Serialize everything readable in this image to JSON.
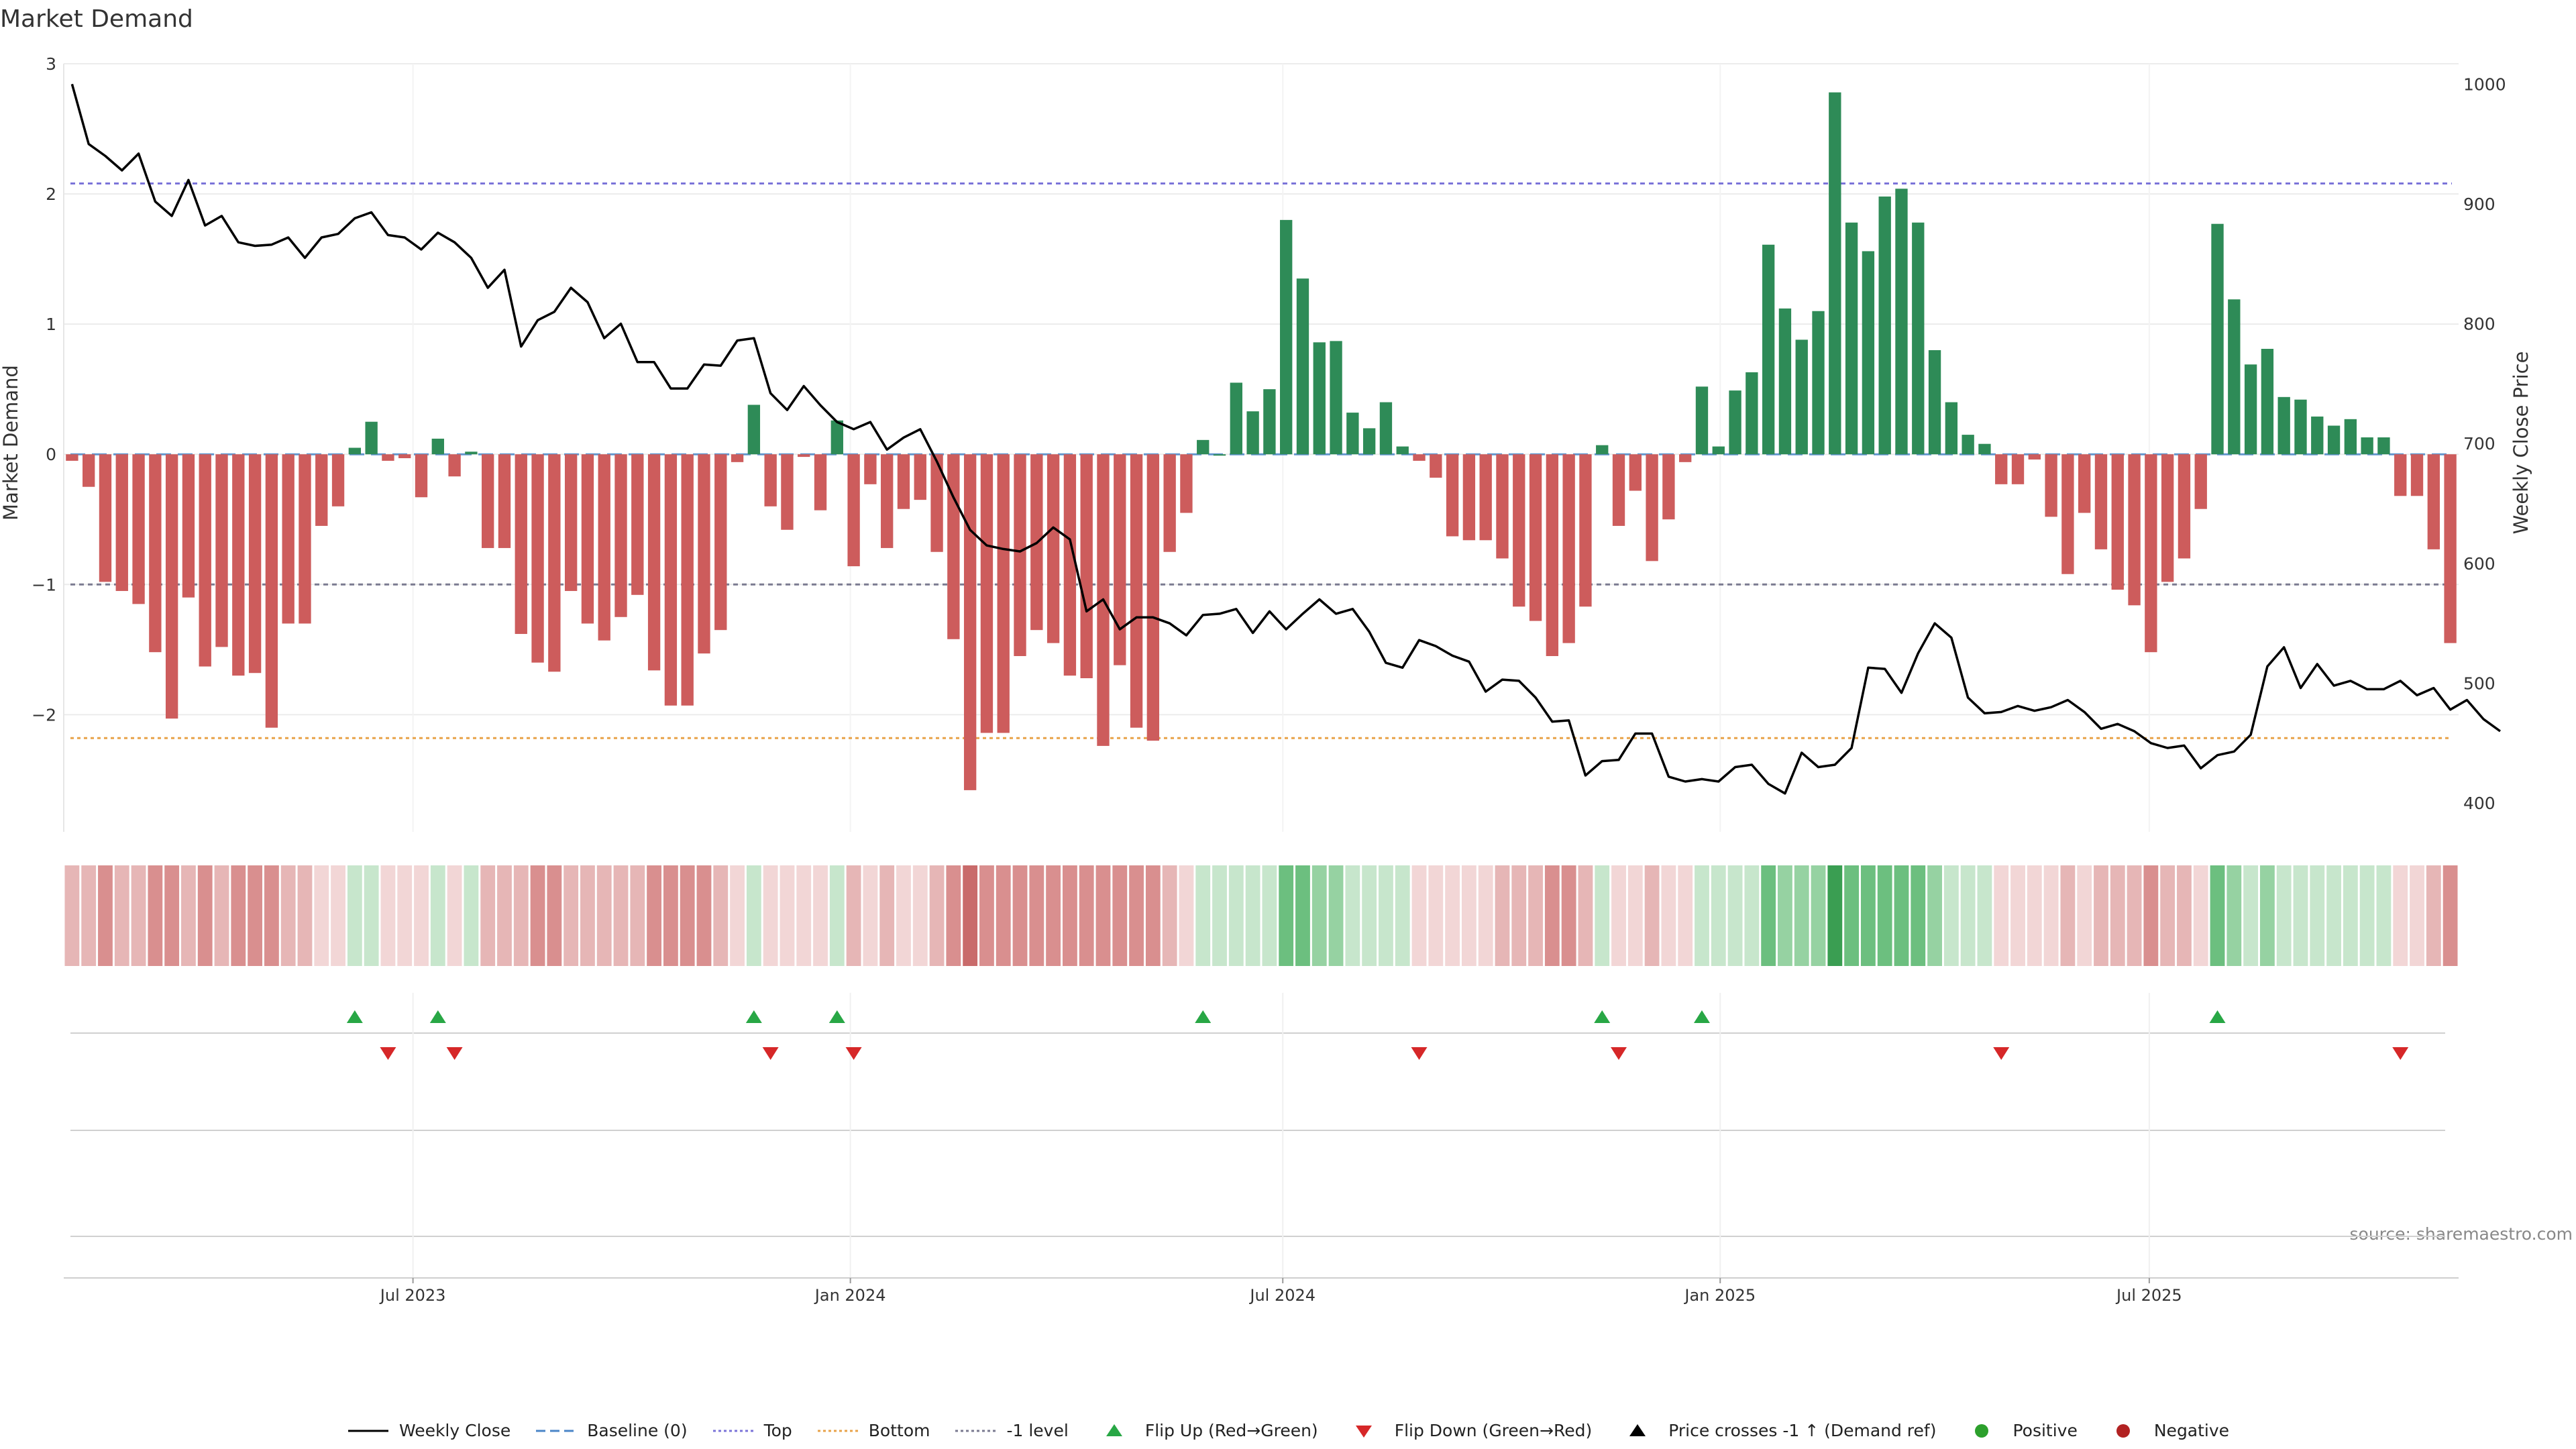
{
  "chart_data": {
    "type": "bar",
    "title": "Market Demand",
    "ylabel": "Market Demand",
    "y2label": "Weekly Close Price",
    "ylim": [
      -2.9,
      3.0
    ],
    "y2lim": [
      376,
      1017
    ],
    "yticks": [
      3,
      2,
      1,
      0,
      -1,
      -2
    ],
    "ytick_labels": [
      "3",
      "2",
      "1",
      "0",
      "−1",
      "−2"
    ],
    "y2ticks": [
      1000,
      900,
      800,
      700,
      600,
      500,
      400
    ],
    "y2tick_labels": [
      "1000",
      "900",
      "800",
      "700",
      "600",
      "500",
      "400"
    ],
    "reference_lines": [
      {
        "name": "top",
        "value": 2.08,
        "color": "#7b74d9"
      },
      {
        "name": "bottom",
        "value": -2.18,
        "color": "#e8a34a"
      },
      {
        "name": "minus-one",
        "value": -1.0,
        "color": "#7a7a90"
      },
      {
        "name": "baseline",
        "value": 0.0,
        "color": "#4a86c8"
      }
    ],
    "date_ticks": [
      {
        "label": "Jul 2023",
        "week": 21
      },
      {
        "label": "Jan 2024",
        "week": 47.3
      },
      {
        "label": "Jul 2024",
        "week": 73.3
      },
      {
        "label": "Jan 2025",
        "week": 99.6
      },
      {
        "label": "Jul 2025",
        "week": 125.4
      }
    ],
    "demand": [
      -0.05,
      -0.25,
      -0.98,
      -1.05,
      -1.15,
      -1.52,
      -2.03,
      -1.1,
      -1.63,
      -1.48,
      -1.7,
      -1.68,
      -2.1,
      -1.3,
      -1.3,
      -0.55,
      -0.4,
      0.05,
      0.25,
      -0.05,
      -0.03,
      -0.33,
      0.12,
      -0.17,
      0.02,
      -0.72,
      -0.72,
      -1.38,
      -1.6,
      -1.67,
      -1.05,
      -1.3,
      -1.43,
      -1.25,
      -1.08,
      -1.66,
      -1.93,
      -1.93,
      -1.53,
      -1.35,
      -0.06,
      0.38,
      -0.4,
      -0.58,
      -0.02,
      -0.43,
      0.26,
      -0.86,
      -0.23,
      -0.72,
      -0.42,
      -0.35,
      -0.75,
      -1.42,
      -2.58,
      -2.14,
      -2.14,
      -1.55,
      -1.35,
      -1.45,
      -1.7,
      -1.72,
      -2.24,
      -1.62,
      -2.1,
      -2.2,
      -0.75,
      -0.45,
      0.11,
      0.0,
      0.55,
      0.33,
      0.5,
      1.8,
      1.35,
      0.86,
      0.87,
      0.32,
      0.2,
      0.4,
      0.06,
      -0.05,
      -0.18,
      -0.63,
      -0.66,
      -0.66,
      -0.8,
      -1.17,
      -1.28,
      -1.55,
      -1.45,
      -1.17,
      0.07,
      -0.55,
      -0.28,
      -0.82,
      -0.5,
      -0.06,
      0.52,
      0.06,
      0.49,
      0.63,
      1.61,
      1.12,
      0.88,
      1.1,
      2.78,
      1.78,
      1.56,
      1.98,
      2.04,
      1.78,
      0.8,
      0.4,
      0.15,
      0.08,
      -0.23,
      -0.23,
      -0.04,
      -0.48,
      -0.92,
      -0.45,
      -0.73,
      -1.04,
      -1.16,
      -1.52,
      -0.98,
      -0.8,
      -0.42,
      1.77,
      1.19,
      0.69,
      0.81,
      0.44,
      0.42,
      0.29,
      0.22,
      0.27,
      0.13,
      0.13,
      -0.32,
      -0.32,
      -0.73,
      -1.45
    ],
    "close": [
      1000,
      950,
      940,
      928,
      942,
      902,
      890,
      920,
      882,
      890,
      868,
      865,
      866,
      872,
      855,
      872,
      875,
      888,
      893,
      874,
      872,
      862,
      876,
      868,
      855,
      830,
      845,
      781,
      803,
      810,
      830,
      818,
      788,
      800,
      768,
      768,
      746,
      746,
      766,
      765,
      786,
      788,
      742,
      728,
      748,
      732,
      718,
      712,
      718,
      695,
      705,
      712,
      685,
      655,
      628,
      615,
      612,
      610,
      617,
      630,
      620,
      560,
      570,
      545,
      555,
      555,
      550,
      540,
      557,
      558,
      562,
      542,
      560,
      545,
      558,
      570,
      558,
      562,
      543,
      517,
      513,
      536,
      531,
      523,
      518,
      493,
      503,
      502,
      488,
      468,
      469,
      423,
      435,
      436,
      458,
      458,
      422,
      418,
      420,
      418,
      430,
      432,
      416,
      408,
      442,
      430,
      432,
      446,
      513,
      512,
      492,
      525,
      550,
      538,
      488,
      475,
      476,
      481,
      477,
      480,
      486,
      476,
      462,
      466,
      460,
      450,
      446,
      448,
      429,
      440,
      443,
      457,
      514,
      530,
      496,
      516,
      498,
      502,
      495,
      495,
      502,
      490,
      496,
      478,
      486,
      470,
      460
    ],
    "flip_up_weeks": [
      17,
      22,
      41,
      46,
      68,
      92,
      98,
      129
    ],
    "flip_down_weeks": [
      19,
      23,
      42,
      47,
      81,
      93,
      116,
      140
    ],
    "strip_intensity": [
      2,
      2,
      3,
      2,
      2,
      3,
      3,
      2,
      3,
      2,
      3,
      3,
      3,
      2,
      2,
      1,
      1,
      1,
      1,
      1,
      1,
      1,
      1,
      1,
      1,
      2,
      2,
      2,
      3,
      3,
      2,
      2,
      2,
      2,
      2,
      3,
      3,
      3,
      3,
      2,
      1,
      1,
      1,
      1,
      1,
      1,
      1,
      2,
      1,
      2,
      1,
      1,
      2,
      3,
      4,
      3,
      3,
      3,
      3,
      3,
      3,
      3,
      3,
      3,
      3,
      3,
      2,
      1,
      1,
      1,
      1,
      1,
      1,
      3,
      3,
      2,
      2,
      1,
      1,
      1,
      1,
      1,
      1,
      1,
      1,
      1,
      2,
      2,
      2,
      3,
      3,
      2,
      1,
      1,
      1,
      2,
      1,
      1,
      1,
      1,
      1,
      1,
      3,
      2,
      2,
      2,
      4,
      3,
      3,
      3,
      3,
      3,
      2,
      1,
      1,
      1,
      1,
      1,
      1,
      1,
      2,
      1,
      2,
      2,
      2,
      3,
      2,
      2,
      1,
      3,
      2,
      1,
      2,
      1,
      1,
      1,
      1,
      1,
      1,
      1,
      1,
      1,
      2,
      3
    ]
  },
  "legend": [
    {
      "label": "Weekly Close",
      "kind": "line",
      "color": "#000000"
    },
    {
      "label": "Baseline (0)",
      "kind": "dashed",
      "color": "#4a86c8"
    },
    {
      "label": "Top",
      "kind": "dotted",
      "color": "#7b74d9"
    },
    {
      "label": "Bottom",
      "kind": "dotted",
      "color": "#e8a34a"
    },
    {
      "label": "-1 level",
      "kind": "dotted",
      "color": "#7a7a90"
    },
    {
      "label": "Flip Up (Red→Green)",
      "kind": "tri-up",
      "color": "#28a745"
    },
    {
      "label": "Flip Down (Green→Red)",
      "kind": "tri-down",
      "color": "#d62728"
    },
    {
      "label": "Price crosses -1 ↑ (Demand ref)",
      "kind": "tri-up",
      "color": "#000000"
    },
    {
      "label": "Positive",
      "kind": "dot",
      "color": "#2ca02c"
    },
    {
      "label": "Negative",
      "kind": "dot",
      "color": "#b22222"
    }
  ],
  "source_text": "source: sharemaestro.com",
  "colors": {
    "positive_bar": "#2e8b57",
    "negative_bar": "#cd5c5c"
  }
}
